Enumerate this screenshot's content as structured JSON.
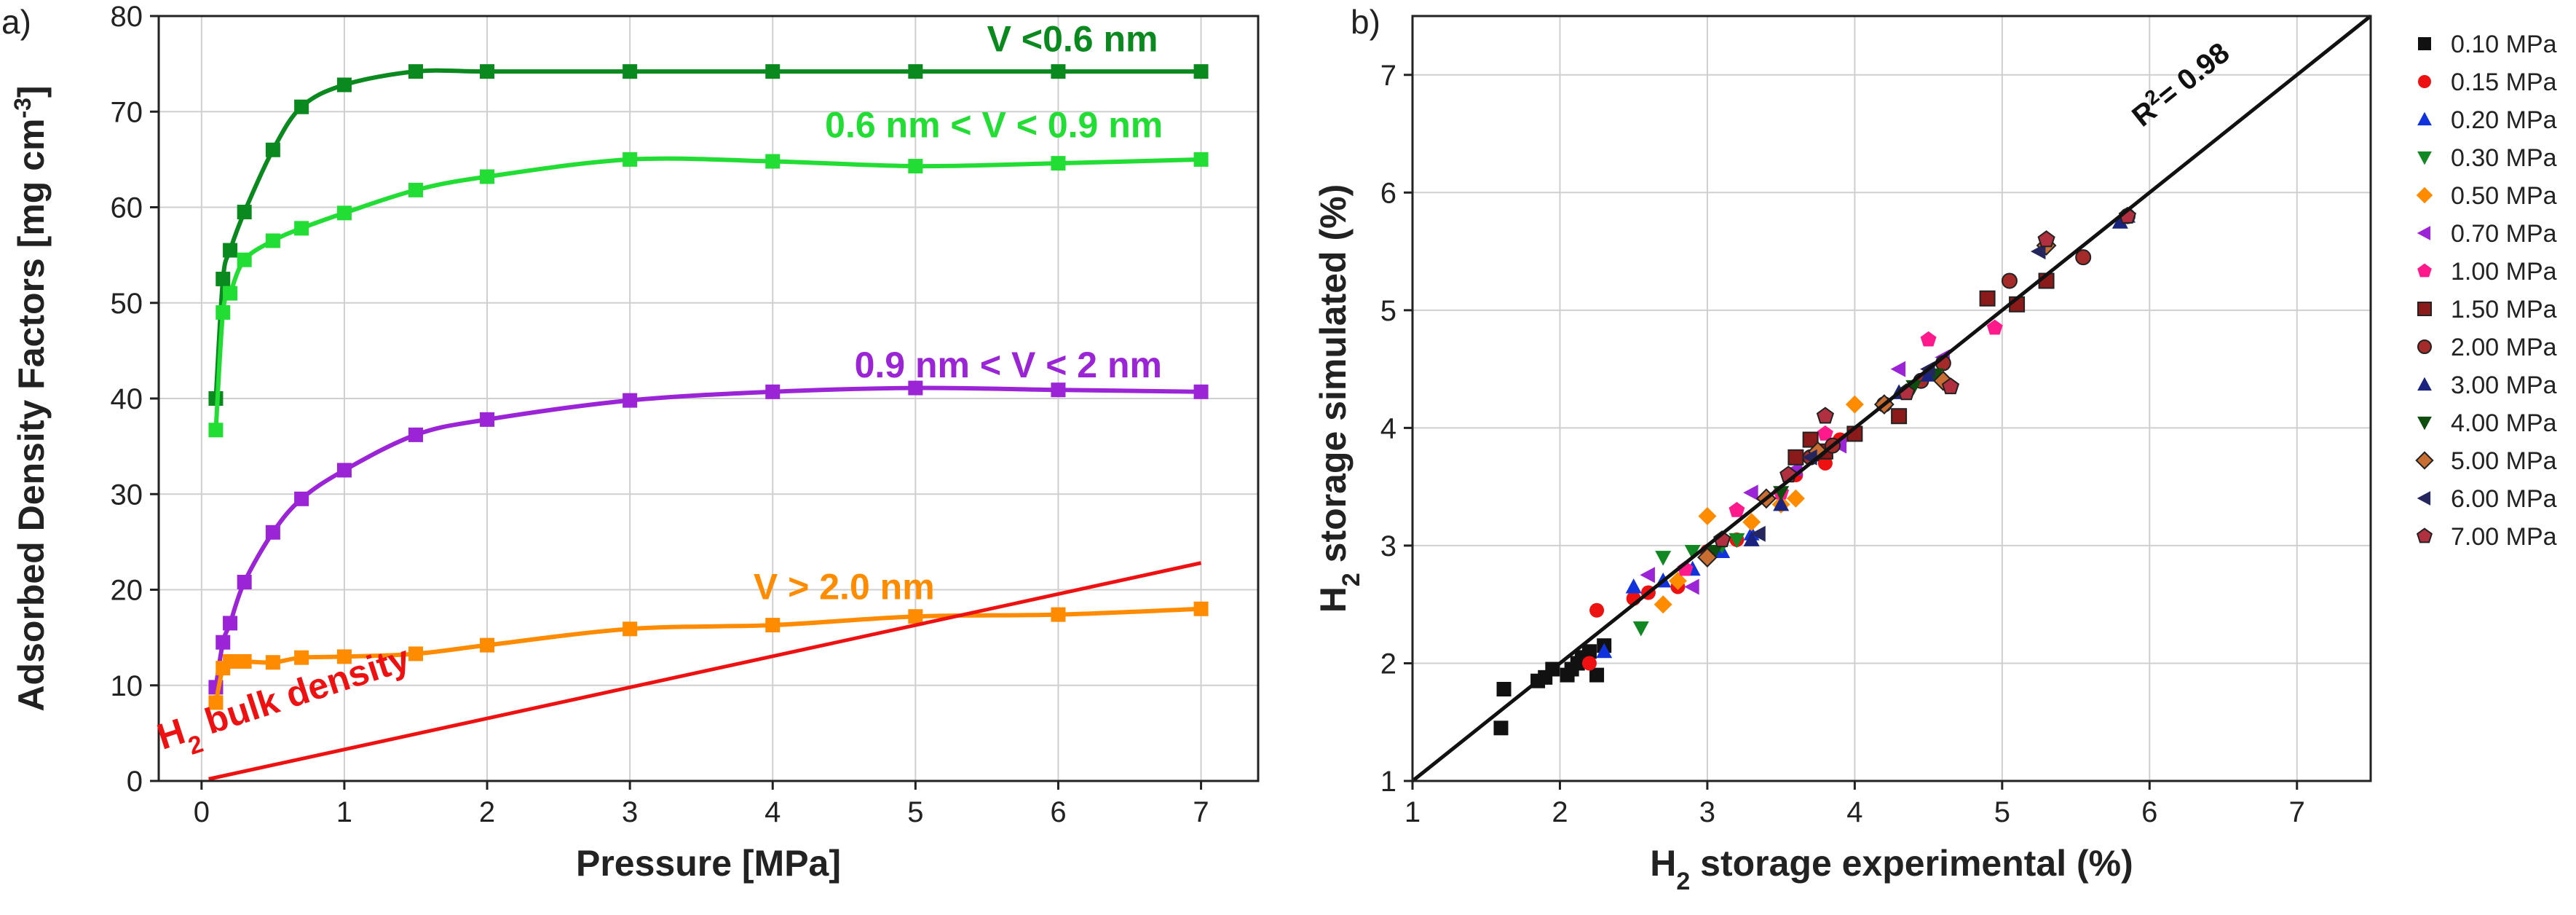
{
  "chart_data": [
    {
      "panel": "a)",
      "type": "line",
      "xlabel": "Pressure [MPa]",
      "ylabel": "Adsorbed Density Factors [mg cm",
      "ylabel_sup": "-3",
      "ylabel_end": "]",
      "xlim": [
        -0.3,
        7.4
      ],
      "ylim": [
        0,
        80
      ],
      "xticks": [
        0,
        1,
        2,
        3,
        4,
        5,
        6,
        7
      ],
      "yticks": [
        0,
        10,
        20,
        30,
        40,
        50,
        60,
        70,
        80
      ],
      "grid": true,
      "series": [
        {
          "name": "V <0.6 nm",
          "color": "#0a8a1e",
          "x": [
            0.1,
            0.15,
            0.2,
            0.3,
            0.5,
            0.7,
            1.0,
            1.5,
            2,
            3,
            4,
            5,
            6,
            7
          ],
          "y": [
            40,
            52.5,
            55.5,
            59.5,
            66,
            70.5,
            72.8,
            74.2,
            74.2,
            74.2,
            74.2,
            74.2,
            74.2,
            74.2
          ],
          "label": {
            "text": "V <0.6 nm",
            "x": 6.1,
            "y": 76.3
          }
        },
        {
          "name": "0.6 nm < V < 0.9 nm",
          "color": "#22dd33",
          "x": [
            0.1,
            0.15,
            0.2,
            0.3,
            0.5,
            0.7,
            1.0,
            1.5,
            2,
            3,
            4,
            5,
            6,
            7
          ],
          "y": [
            36.7,
            49,
            51,
            54.5,
            56.5,
            57.8,
            59.4,
            61.8,
            63.2,
            65,
            64.8,
            64.3,
            64.6,
            65
          ],
          "label": {
            "text": "0.6 nm < V < 0.9 nm",
            "x": 5.55,
            "y": 67.3
          }
        },
        {
          "name": "0.9 nm < V < 2 nm",
          "color": "#9b24d6",
          "x": [
            0.1,
            0.15,
            0.2,
            0.3,
            0.5,
            0.7,
            1.0,
            1.5,
            2,
            3,
            4,
            5,
            6,
            7
          ],
          "y": [
            9.8,
            14.5,
            16.5,
            20.8,
            26,
            29.5,
            32.5,
            36.2,
            37.8,
            39.8,
            40.7,
            41.1,
            40.9,
            40.7
          ],
          "label": {
            "text": "0.9 nm < V < 2 nm",
            "x": 5.65,
            "y": 42.2
          }
        },
        {
          "name": "V > 2.0 nm",
          "color": "#ff8c00",
          "x": [
            0.1,
            0.15,
            0.2,
            0.3,
            0.5,
            0.7,
            1.0,
            1.5,
            2,
            3,
            4,
            5,
            6,
            7
          ],
          "y": [
            8.2,
            11.8,
            12.5,
            12.5,
            12.4,
            12.9,
            13,
            13.3,
            14.2,
            15.9,
            16.3,
            17.2,
            17.4,
            18
          ],
          "label": {
            "text": "V > 2.0 nm",
            "x": 4.5,
            "y": 19
          }
        },
        {
          "name": "H2 bulk density",
          "color": "#ee1111",
          "x": [
            0.05,
            7
          ],
          "y": [
            0.2,
            22.8
          ],
          "no_markers": true,
          "label": {
            "text": "H",
            "sub": "2",
            "rest": " bulk density",
            "x": 0.6,
            "y": 7.5,
            "rotate": -18
          }
        }
      ]
    },
    {
      "panel": "b)",
      "type": "scatter",
      "xlabel": "H",
      "xlabel_sub": "2",
      "xlabel_rest": " storage experimental (%)",
      "ylabel": "H",
      "ylabel_sub": "2",
      "ylabel_rest": " storage simulated (%)",
      "xlim": [
        1,
        7.5
      ],
      "ylim": [
        1,
        7.5
      ],
      "xticks": [
        1,
        2,
        3,
        4,
        5,
        6,
        7
      ],
      "yticks": [
        1,
        2,
        3,
        4,
        5,
        6,
        7
      ],
      "grid": true,
      "fit_line": {
        "x": [
          1,
          7.5
        ],
        "y": [
          1,
          7.5
        ]
      },
      "r2_label": {
        "prefix": "R",
        "sup": "2",
        "rest": "= 0.98"
      },
      "series": [
        {
          "name": "0.10 MPa",
          "color": "#111111",
          "marker": "square",
          "x": [
            1.6,
            1.62,
            1.85,
            1.9,
            1.95,
            2.05,
            2.08,
            2.12,
            2.15,
            2.2,
            2.3,
            2.25
          ],
          "y": [
            1.45,
            1.78,
            1.85,
            1.88,
            1.95,
            1.9,
            1.95,
            2.0,
            2.05,
            2.1,
            2.15,
            1.9
          ]
        },
        {
          "name": "0.15 MPa",
          "color": "#ee1111",
          "marker": "circle",
          "x": [
            2.2,
            2.25,
            2.5,
            2.6,
            2.8,
            3.0,
            3.2,
            3.6,
            3.8,
            3.9
          ],
          "y": [
            2.0,
            2.45,
            2.55,
            2.6,
            2.65,
            2.95,
            3.05,
            3.6,
            3.7,
            3.9
          ]
        },
        {
          "name": "0.20 MPa",
          "color": "#1133dd",
          "marker": "triangle-up",
          "x": [
            2.3,
            2.5,
            2.7,
            2.9,
            3.1,
            3.3
          ],
          "y": [
            2.1,
            2.65,
            2.7,
            2.8,
            2.95,
            3.1
          ]
        },
        {
          "name": "0.30 MPa",
          "color": "#118822",
          "marker": "triangle-down",
          "x": [
            2.55,
            2.7,
            2.9,
            3.1,
            3.2
          ],
          "y": [
            2.3,
            2.9,
            2.95,
            3.0,
            3.05
          ]
        },
        {
          "name": "0.50 MPa",
          "color": "#ff8c00",
          "marker": "diamond",
          "x": [
            2.7,
            2.8,
            3.0,
            3.3,
            3.5,
            3.6,
            4.0
          ],
          "y": [
            2.5,
            2.7,
            3.25,
            3.2,
            3.35,
            3.4,
            4.2
          ]
        },
        {
          "name": "0.70 MPa",
          "color": "#9b24d6",
          "marker": "triangle-left",
          "x": [
            2.6,
            2.9,
            3.3,
            3.6,
            3.9,
            4.3,
            4.6
          ],
          "y": [
            2.75,
            2.65,
            3.45,
            3.65,
            3.85,
            4.5,
            4.6
          ]
        },
        {
          "name": "1.00 MPa",
          "color": "#ff1a8c",
          "marker": "pentagon",
          "x": [
            2.85,
            3.2,
            3.5,
            3.8,
            4.5,
            4.95
          ],
          "y": [
            2.8,
            3.3,
            3.45,
            3.95,
            4.75,
            4.85
          ]
        },
        {
          "name": "1.50 MPa",
          "color": "#8b1a1a",
          "marker": "square-outline",
          "x": [
            3.6,
            3.7,
            3.8,
            4.0,
            4.3,
            4.9,
            5.3,
            5.1
          ],
          "y": [
            3.75,
            3.9,
            3.8,
            3.95,
            4.1,
            5.1,
            5.25,
            5.05
          ]
        },
        {
          "name": "2.00 MPa",
          "color": "#a52a2a",
          "marker": "circle-outline",
          "x": [
            3.7,
            3.85,
            4.2,
            4.45,
            4.6,
            5.05,
            5.55,
            5.85
          ],
          "y": [
            3.75,
            3.85,
            4.2,
            4.4,
            4.55,
            5.25,
            5.45,
            5.8
          ]
        },
        {
          "name": "3.00 MPa",
          "color": "#1a237e",
          "marker": "triangle-up",
          "x": [
            3.3,
            3.5,
            4.3,
            4.5,
            5.8,
            5.85
          ],
          "y": [
            3.05,
            3.35,
            4.3,
            4.45,
            5.75,
            5.8
          ]
        },
        {
          "name": "4.00 MPa",
          "color": "#0d4d0d",
          "marker": "triangle-down",
          "x": [
            3.05,
            3.5,
            4.4,
            4.55
          ],
          "y": [
            2.95,
            3.45,
            4.35,
            4.45
          ]
        },
        {
          "name": "5.00 MPa",
          "color": "#c86e32",
          "marker": "diamond-outline",
          "x": [
            3.0,
            3.4,
            3.75,
            4.2,
            4.6,
            5.3
          ],
          "y": [
            2.9,
            3.4,
            3.8,
            4.2,
            4.4,
            5.55
          ]
        },
        {
          "name": "6.00 MPa",
          "color": "#26265e",
          "marker": "triangle-left",
          "x": [
            3.35,
            3.7,
            4.5,
            5.25
          ],
          "y": [
            3.1,
            3.75,
            4.5,
            5.5
          ]
        },
        {
          "name": "7.00 MPa",
          "color": "#b03040",
          "marker": "pentagon-outline",
          "x": [
            3.1,
            3.55,
            3.8,
            4.35,
            4.65,
            5.3,
            5.85
          ],
          "y": [
            3.05,
            3.6,
            4.1,
            4.3,
            4.35,
            5.6,
            5.8
          ]
        }
      ]
    }
  ]
}
